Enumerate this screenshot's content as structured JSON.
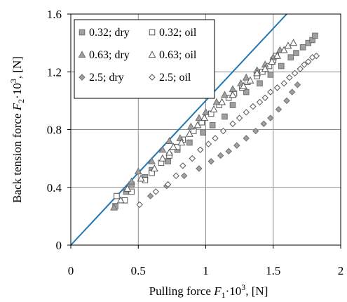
{
  "chart_data": {
    "type": "scatter",
    "xlabel": {
      "prefix": "Pulling force ",
      "symbol": "F",
      "sub": "1",
      "mid": "·10",
      "sup": "3",
      "suffix": ", [N]"
    },
    "ylabel": {
      "prefix": "Back tension force ",
      "symbol": "F",
      "sub": "2",
      "mid": "·10",
      "sup": "3",
      "suffix": ", [N]"
    },
    "xlim": [
      0,
      2
    ],
    "ylim": [
      0,
      1.6
    ],
    "xticks": [
      0,
      0.5,
      1,
      1.5,
      2
    ],
    "xtick_labels": [
      "0",
      "0.5",
      "1",
      "1.5",
      "2"
    ],
    "yticks": [
      0,
      0.4,
      0.8,
      1.2,
      1.6
    ],
    "ytick_labels": [
      "0",
      "0.4",
      "0.8",
      "1.2",
      "1.6"
    ],
    "grid": true,
    "legend_position": "top-left",
    "line_color": "#1f77b4",
    "reference_line": {
      "x": [
        0,
        1.6
      ],
      "y": [
        0,
        1.6
      ]
    },
    "series": [
      {
        "name": "0.32; dry",
        "marker": "square",
        "filled": true,
        "color": "#a0a0a0",
        "x": [
          0.33,
          0.41,
          0.45,
          0.55,
          0.6,
          0.72,
          0.79,
          0.88,
          0.98,
          1.05,
          1.14,
          1.2,
          1.3,
          1.4,
          1.48,
          1.56,
          1.63,
          1.67,
          1.72,
          1.76,
          1.79,
          1.81
        ],
        "y": [
          0.27,
          0.37,
          0.42,
          0.47,
          0.52,
          0.58,
          0.66,
          0.71,
          0.78,
          0.83,
          0.89,
          0.97,
          1.06,
          1.12,
          1.18,
          1.24,
          1.3,
          1.33,
          1.37,
          1.4,
          1.42,
          1.45
        ]
      },
      {
        "name": "0.32; oil",
        "marker": "square",
        "filled": false,
        "color": "#555555",
        "x": [
          0.34,
          0.4,
          0.45,
          0.55,
          0.6,
          0.67,
          0.73,
          0.79,
          0.83,
          0.91,
          0.97,
          1.04,
          1.1,
          1.17,
          1.21,
          1.27,
          1.31,
          1.38,
          1.42,
          1.47,
          1.5,
          1.52
        ],
        "y": [
          0.34,
          0.31,
          0.37,
          0.45,
          0.5,
          0.57,
          0.62,
          0.68,
          0.73,
          0.79,
          0.85,
          0.91,
          0.97,
          1.02,
          1.05,
          1.09,
          1.13,
          1.17,
          1.2,
          1.24,
          1.28,
          1.31
        ]
      },
      {
        "name": "0.63; dry",
        "marker": "triangle",
        "filled": true,
        "color": "#a0a0a0",
        "x": [
          0.32,
          0.45,
          0.5,
          0.6,
          0.68,
          0.73,
          0.81,
          0.89,
          0.95,
          1.0,
          1.08,
          1.14,
          1.2,
          1.26,
          1.3,
          1.38,
          1.44,
          1.5,
          1.55
        ],
        "y": [
          0.26,
          0.44,
          0.51,
          0.58,
          0.66,
          0.72,
          0.74,
          0.82,
          0.88,
          0.92,
          0.99,
          1.04,
          1.08,
          1.12,
          1.16,
          1.21,
          1.25,
          1.3,
          1.35
        ]
      },
      {
        "name": "0.63; oil",
        "marker": "triangle",
        "filled": false,
        "color": "#555555",
        "x": [
          0.37,
          0.42,
          0.52,
          0.62,
          0.68,
          0.73,
          0.76,
          0.82,
          0.88,
          0.94,
          0.99,
          1.06,
          1.12,
          1.2,
          1.28,
          1.33,
          1.38,
          1.44,
          1.49,
          1.53,
          1.58,
          1.61,
          1.65
        ],
        "y": [
          0.31,
          0.39,
          0.46,
          0.53,
          0.6,
          0.64,
          0.68,
          0.71,
          0.77,
          0.83,
          0.88,
          0.94,
          0.99,
          1.04,
          1.1,
          1.14,
          1.19,
          1.22,
          1.27,
          1.31,
          1.35,
          1.38,
          1.4
        ]
      },
      {
        "name": "2.5; dry",
        "marker": "diamond",
        "filled": true,
        "color": "#a0a0a0",
        "x": [
          0.59,
          0.71,
          0.84,
          0.95,
          1.04,
          1.11,
          1.17,
          1.23,
          1.3,
          1.37,
          1.43,
          1.48,
          1.54,
          1.6,
          1.64,
          1.68
        ],
        "y": [
          0.34,
          0.41,
          0.48,
          0.53,
          0.58,
          0.62,
          0.65,
          0.69,
          0.74,
          0.79,
          0.84,
          0.88,
          0.94,
          1.0,
          1.06,
          1.11
        ]
      },
      {
        "name": "2.5; oil",
        "marker": "diamond",
        "filled": false,
        "color": "#555555",
        "x": [
          0.51,
          0.63,
          0.72,
          0.78,
          0.83,
          0.9,
          0.96,
          1.02,
          1.07,
          1.13,
          1.2,
          1.25,
          1.3,
          1.35,
          1.4,
          1.44,
          1.48,
          1.53,
          1.58,
          1.62,
          1.66,
          1.7,
          1.73,
          1.76,
          1.79,
          1.82
        ],
        "y": [
          0.28,
          0.37,
          0.42,
          0.48,
          0.55,
          0.6,
          0.66,
          0.7,
          0.74,
          0.79,
          0.84,
          0.88,
          0.92,
          0.96,
          0.99,
          1.02,
          1.06,
          1.09,
          1.12,
          1.16,
          1.19,
          1.22,
          1.25,
          1.27,
          1.3,
          1.31
        ]
      }
    ]
  }
}
